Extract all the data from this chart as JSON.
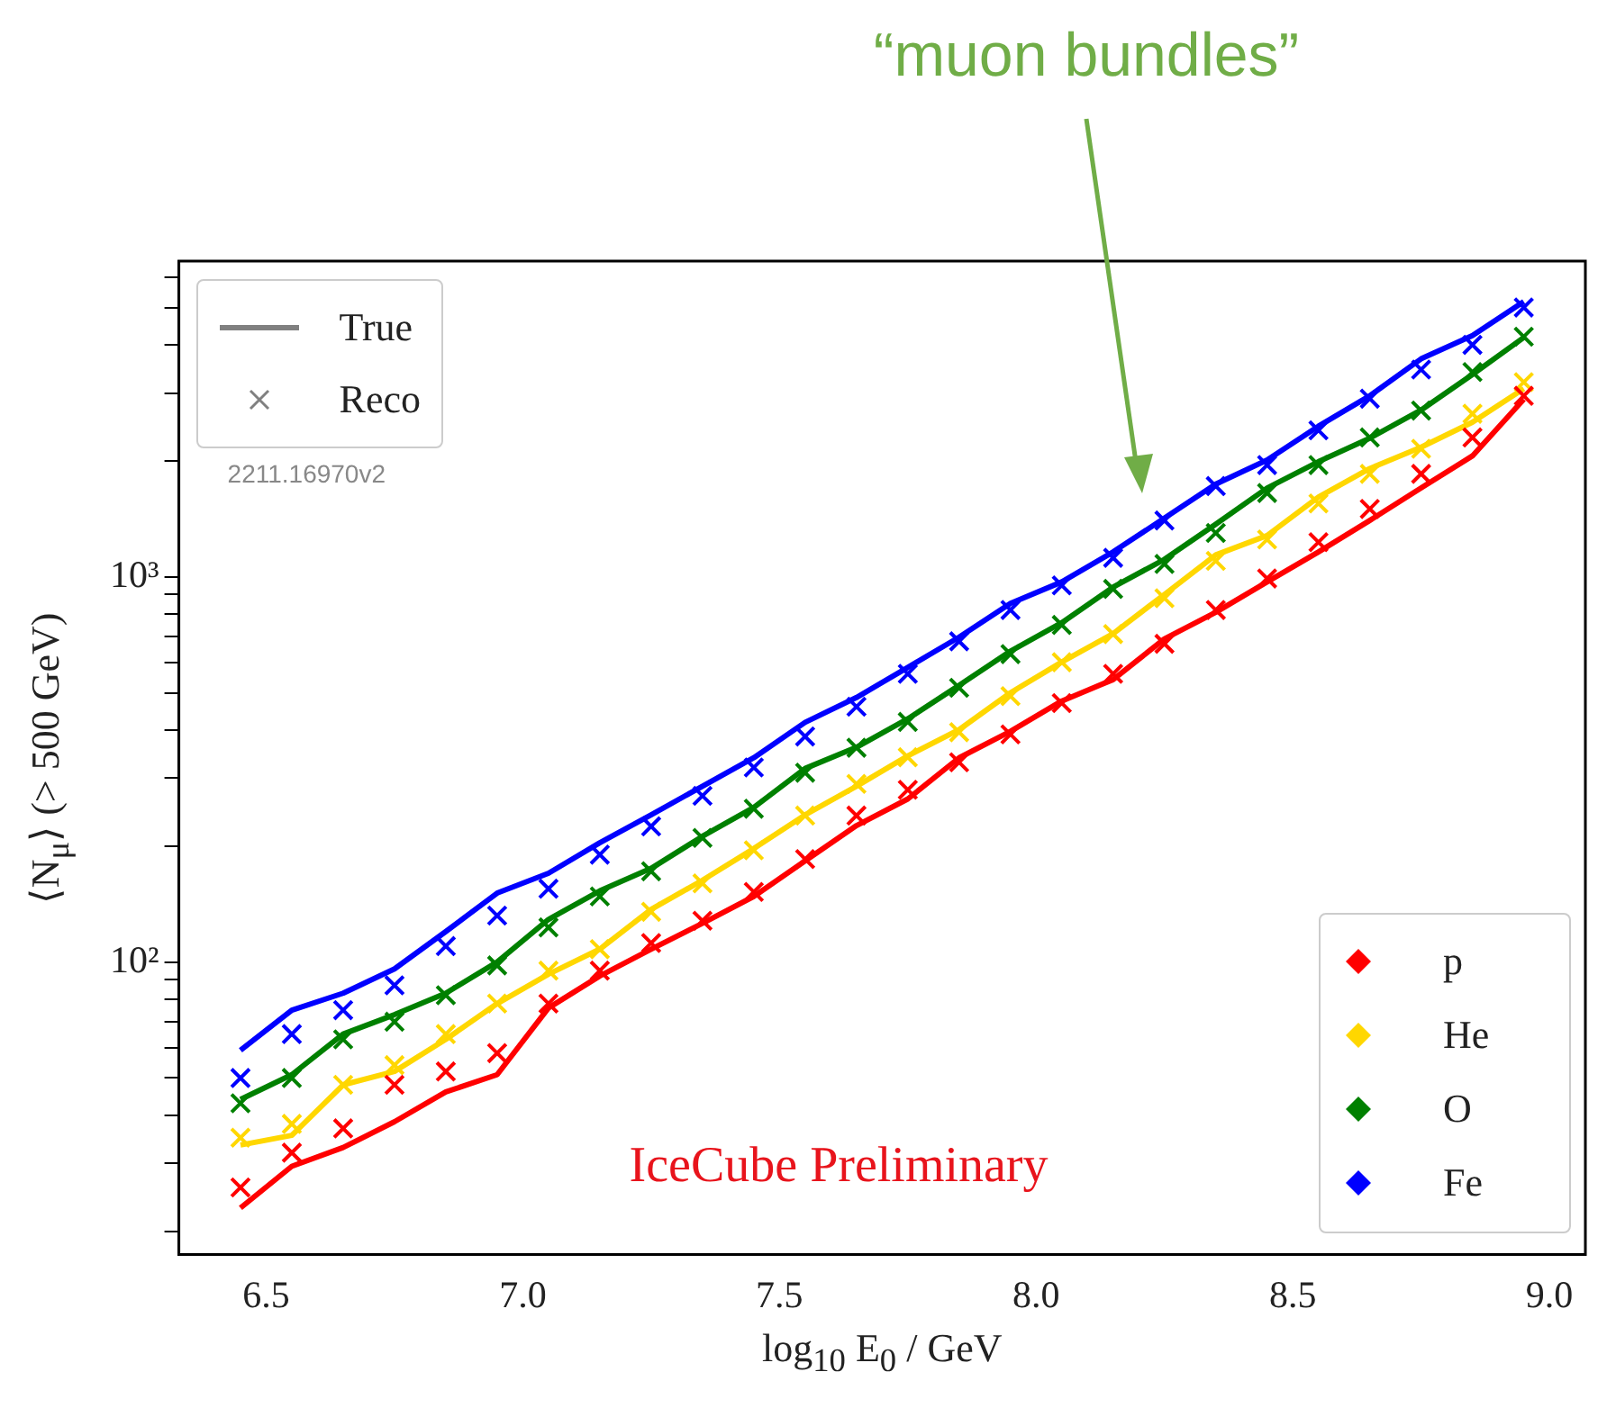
{
  "chart_data": {
    "type": "line",
    "xlabel": "log$_{10}$ E$_{0}$ / GeV",
    "ylabel": "⟨N$_{μ}$⟩ (> 500 GeV)",
    "annotations": [
      "“muon bundles”",
      "True",
      "Reco",
      "2211.16970v2",
      "IceCube Preliminary"
    ],
    "x": [
      6.45,
      6.55,
      6.65,
      6.75,
      6.85,
      6.95,
      7.05,
      7.15,
      7.25,
      7.35,
      7.45,
      7.55,
      7.65,
      7.75,
      7.85,
      7.95,
      8.05,
      8.15,
      8.25,
      8.35,
      8.45,
      8.55,
      8.65,
      8.75,
      8.85,
      8.95
    ],
    "series": [
      {
        "name": "p",
        "marker": "none",
        "line_style": "solid",
        "color": "#ff0000",
        "values": [
          23,
          29.5,
          33,
          38.5,
          46,
          51,
          76,
          92,
          108,
          126,
          148,
          183,
          226,
          265,
          339,
          397,
          476,
          541,
          690,
          809,
          970,
          1160,
          1400,
          1700,
          2060,
          2890
        ]
      },
      {
        "name": "He",
        "marker": "none",
        "line_style": "solid",
        "color": "#ffd700",
        "values": [
          33.5,
          35.5,
          48,
          52,
          63,
          78,
          93,
          108,
          137,
          163,
          197,
          241,
          286,
          343,
          401,
          500,
          601,
          712,
          900,
          1140,
          1280,
          1610,
          1910,
          2170,
          2520,
          3080
        ]
      },
      {
        "name": "O",
        "marker": "none",
        "line_style": "solid",
        "color": "#008000",
        "values": [
          44,
          51,
          65,
          73,
          83,
          100,
          129,
          153,
          175,
          212,
          252,
          318,
          361,
          428,
          523,
          641,
          760,
          940,
          1110,
          1370,
          1700,
          1990,
          2290,
          2710,
          3350,
          4180
        ]
      },
      {
        "name": "Fe",
        "marker": "none",
        "line_style": "solid",
        "color": "#0000ff",
        "values": [
          59,
          75,
          83,
          96,
          120,
          151,
          170,
          204,
          241,
          286,
          339,
          419,
          486,
          582,
          697,
          853,
          970,
          1160,
          1420,
          1740,
          2010,
          2460,
          2950,
          3680,
          4230,
          5180
        ]
      },
      {
        "type": "scatter",
        "marker": "cross",
        "color": "#ff0000",
        "values": [
          26,
          32,
          37,
          48,
          52,
          58,
          78,
          95,
          112,
          128,
          152,
          185,
          240,
          280,
          330,
          390,
          470,
          560,
          670,
          820,
          990,
          1230,
          1500,
          1850,
          2300,
          2950
        ]
      },
      {
        "type": "scatter",
        "marker": "cross",
        "color": "#ffd700",
        "values": [
          35,
          38,
          48,
          54,
          65,
          78,
          95,
          108,
          135,
          160,
          195,
          240,
          290,
          340,
          395,
          490,
          600,
          710,
          880,
          1100,
          1250,
          1550,
          1850,
          2150,
          2650,
          3200
        ]
      },
      {
        "type": "scatter",
        "marker": "cross",
        "color": "#008000",
        "values": [
          43,
          50,
          63,
          70,
          82,
          98,
          123,
          148,
          172,
          210,
          250,
          310,
          360,
          420,
          515,
          630,
          750,
          930,
          1080,
          1300,
          1650,
          1950,
          2300,
          2700,
          3400,
          4200
        ]
      },
      {
        "type": "scatter",
        "marker": "cross",
        "color": "#0000ff",
        "values": [
          50,
          65,
          75,
          87,
          110,
          132,
          155,
          190,
          225,
          270,
          320,
          385,
          460,
          560,
          680,
          820,
          950,
          1120,
          1400,
          1720,
          1950,
          2400,
          2900,
          3450,
          4000,
          5000
        ]
      }
    ],
    "log": true,
    "grid": false,
    "legend": "bottom right",
    "xlim": [
      6.33,
      9.07
    ],
    "xticks": [
      6.5,
      {
        "value": 7,
        "label": "7.0"
      },
      7.5,
      {
        "value": 8,
        "label": "8.0"
      },
      8.5,
      {
        "value": 9,
        "label": "9.0"
      }
    ],
    "ylim": [
      17.4,
      6600
    ],
    "yticks": [
      {
        "value": 20,
        "label": null
      },
      {
        "value": 30,
        "label": null
      },
      {
        "value": 40,
        "label": null
      },
      {
        "value": 50,
        "label": null
      },
      {
        "value": 60,
        "label": null
      },
      {
        "value": 70,
        "label": null
      },
      {
        "value": 80,
        "label": null
      },
      {
        "value": 90,
        "label": null
      },
      {
        "value": 100,
        "label": "10²"
      },
      {
        "value": 200,
        "label": null
      },
      {
        "value": 300,
        "label": null
      },
      {
        "value": 400,
        "label": null
      },
      {
        "value": 500,
        "label": null
      },
      {
        "value": 600,
        "label": null
      },
      {
        "value": 700,
        "label": null
      },
      {
        "value": 800,
        "label": null
      },
      {
        "value": 900,
        "label": null
      },
      {
        "value": 1000,
        "label": "10³"
      },
      {
        "value": 2000,
        "label": null
      },
      {
        "value": 3000,
        "label": null
      },
      {
        "value": 4000,
        "label": null
      },
      {
        "value": 5000,
        "label": null
      },
      {
        "value": 6000,
        "label": null
      }
    ]
  }
}
